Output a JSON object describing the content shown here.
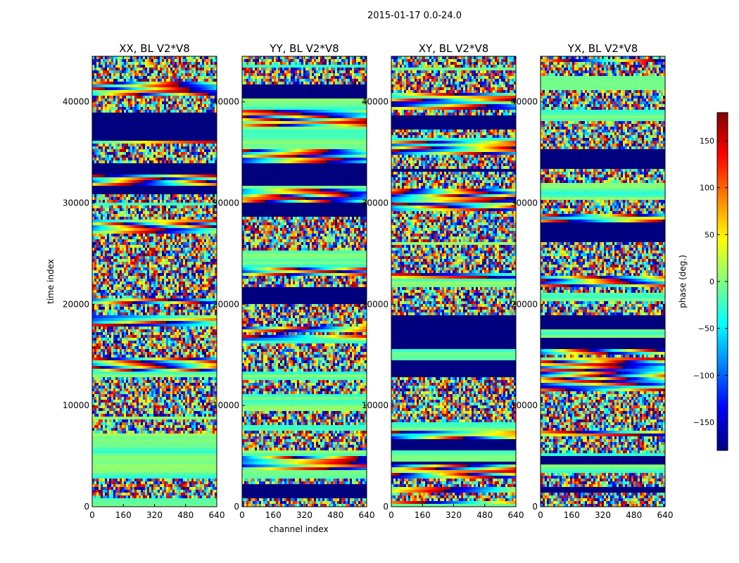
{
  "figure": {
    "suptitle": "2015-01-17 0.0-24.0"
  },
  "chart_data": [
    {
      "type": "heatmap",
      "title": "XX, BL V2*V8",
      "xlabel": "",
      "ylabel": "time index",
      "xlim": [
        0,
        640
      ],
      "ylim": [
        0,
        44500
      ],
      "xticks": [
        0,
        160,
        320,
        480,
        640
      ],
      "yticks": [
        0,
        10000,
        20000,
        30000,
        40000
      ],
      "value_range": [
        -180,
        180
      ],
      "value_label": "phase (deg.)",
      "seed": 11
    },
    {
      "type": "heatmap",
      "title": "YY, BL V2*V8",
      "xlabel": "channel index",
      "ylabel": "",
      "xlim": [
        0,
        640
      ],
      "ylim": [
        0,
        44500
      ],
      "xticks": [
        0,
        160,
        320,
        480,
        640
      ],
      "yticks": [
        0,
        10000,
        20000,
        30000,
        40000
      ],
      "value_range": [
        -180,
        180
      ],
      "value_label": "phase (deg.)",
      "seed": 23
    },
    {
      "type": "heatmap",
      "title": "XY, BL V2*V8",
      "xlabel": "",
      "ylabel": "",
      "xlim": [
        0,
        640
      ],
      "ylim": [
        0,
        44500
      ],
      "xticks": [
        0,
        160,
        320,
        480,
        640
      ],
      "yticks": [
        0,
        10000,
        20000,
        30000,
        40000
      ],
      "value_range": [
        -180,
        180
      ],
      "value_label": "phase (deg.)",
      "seed": 37
    },
    {
      "type": "heatmap",
      "title": "YX, BL V2*V8",
      "xlabel": "",
      "ylabel": "",
      "xlim": [
        0,
        640
      ],
      "ylim": [
        0,
        44500
      ],
      "xticks": [
        0,
        160,
        320,
        480,
        640
      ],
      "yticks": [
        0,
        10000,
        20000,
        30000,
        40000
      ],
      "value_range": [
        -180,
        180
      ],
      "value_label": "phase (deg.)",
      "seed": 53
    }
  ],
  "colorbar": {
    "label": "phase (deg.)",
    "range": [
      -180,
      180
    ],
    "ticks": [
      -150,
      -100,
      -50,
      0,
      50,
      100,
      150
    ],
    "colormap": [
      "#00007f",
      "#0000ff",
      "#007fff",
      "#00ffff",
      "#7fff7f",
      "#ffff00",
      "#ff7f00",
      "#ff0000",
      "#7f0000"
    ]
  }
}
